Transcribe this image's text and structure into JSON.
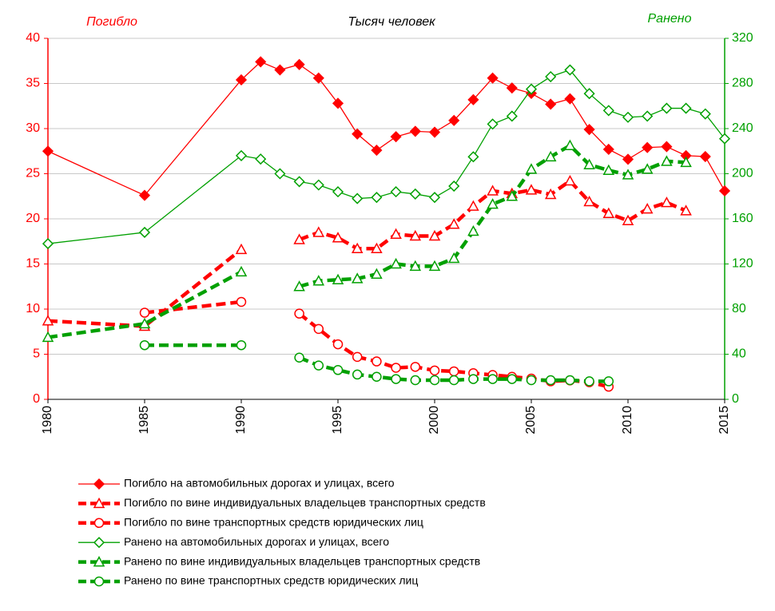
{
  "chart_data": {
    "type": "line",
    "title": "Тысяч человек",
    "y_label": "Погибло",
    "y2_label": "Ранено",
    "x": [
      1980,
      1985,
      1990,
      1991,
      1992,
      1993,
      1994,
      1995,
      1996,
      1997,
      1998,
      1999,
      2000,
      2001,
      2002,
      2003,
      2004,
      2005,
      2006,
      2007,
      2008,
      2009,
      2010,
      2011,
      2012,
      2013,
      2014,
      2015
    ],
    "xlim": [
      1980,
      2015
    ],
    "xticks": [
      1980,
      1985,
      1990,
      1995,
      2000,
      2005,
      2010,
      2015
    ],
    "ylim": [
      0,
      40
    ],
    "yticks": [
      0,
      5,
      10,
      15,
      20,
      25,
      30,
      35,
      40
    ],
    "y2lim": [
      0,
      320
    ],
    "y2ticks": [
      0,
      40,
      80,
      120,
      160,
      200,
      240,
      280,
      320
    ],
    "grid": true,
    "legend": "bottom",
    "series": [
      {
        "name": "Погибло  на автомобильных дорогах и улицах, всего",
        "color": "#ff0000",
        "marker": "diamond-filled",
        "dashed": false,
        "values": [
          27.5,
          22.6,
          35.4,
          37.4,
          36.5,
          37.1,
          35.6,
          32.8,
          29.4,
          27.6,
          29.1,
          29.7,
          29.6,
          30.9,
          33.2,
          35.6,
          34.5,
          33.9,
          32.7,
          33.3,
          29.9,
          27.7,
          26.6,
          27.9,
          28.0,
          27.0,
          26.9,
          23.1
        ]
      },
      {
        "name": "Погибло  по вине индивидуальных владельцев транспортных средств",
        "color": "#ff0000",
        "marker": "triangle",
        "dashed": true,
        "values": [
          8.7,
          8.1,
          16.6,
          null,
          null,
          17.7,
          18.5,
          17.9,
          16.7,
          16.7,
          18.3,
          18.1,
          18.1,
          19.4,
          21.4,
          23.1,
          22.8,
          23.2,
          22.7,
          24.2,
          21.9,
          20.6,
          19.8,
          21.1,
          21.8,
          20.9,
          null,
          null
        ]
      },
      {
        "name": "Погибло  по вине транспортных средств юридических лиц",
        "color": "#ff0000",
        "marker": "circle",
        "dashed": true,
        "values": [
          null,
          9.6,
          10.8,
          null,
          null,
          9.5,
          7.8,
          6.1,
          4.7,
          4.2,
          3.5,
          3.6,
          3.2,
          3.1,
          2.9,
          2.7,
          2.5,
          2.3,
          2.0,
          2.1,
          1.9,
          1.4,
          null,
          null,
          null,
          null,
          null,
          null
        ]
      },
      {
        "name": "Ранено  на автомобильных дорогах и улицах, всего",
        "color": "#00a000",
        "marker": "diamond",
        "dashed": false,
        "axis": "y2",
        "values": [
          138,
          148,
          216,
          213,
          200,
          193,
          190,
          184,
          178,
          179,
          184,
          182,
          179,
          189,
          215,
          244,
          251,
          275,
          286,
          292,
          271,
          256,
          250,
          251,
          258,
          258,
          253,
          231
        ]
      },
      {
        "name": "Ранено  по вине индивидуальных владельцев транспортных средств",
        "color": "#00a000",
        "marker": "triangle",
        "dashed": true,
        "axis": "y2",
        "values": [
          55,
          67,
          113,
          null,
          null,
          100,
          105,
          106,
          107,
          111,
          120,
          118,
          118,
          125,
          149,
          173,
          180,
          204,
          215,
          225,
          208,
          203,
          199,
          204,
          211,
          210,
          null,
          null
        ]
      },
      {
        "name": "Ранено  по вине транспортных средств юридических лиц",
        "color": "#00a000",
        "marker": "circle",
        "dashed": true,
        "axis": "y2",
        "values": [
          null,
          48,
          48,
          null,
          null,
          37,
          30,
          26,
          22,
          20,
          18,
          17,
          17,
          17,
          18,
          18,
          18,
          17,
          17,
          17,
          16,
          16,
          null,
          null,
          null,
          null,
          null,
          null
        ]
      }
    ]
  }
}
